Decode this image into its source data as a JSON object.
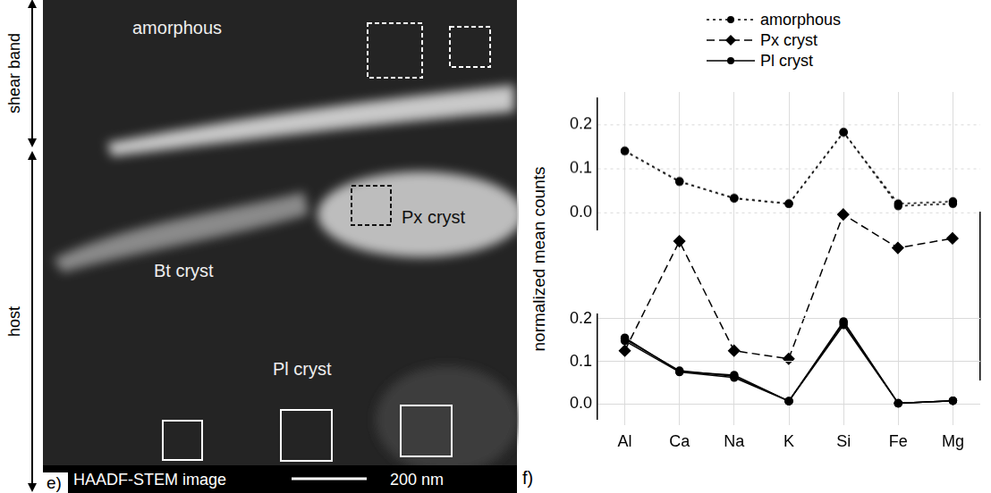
{
  "image": {
    "letter": "e)",
    "caption": "HAADF-STEM image",
    "scale_bar": "200 nm",
    "regions": [
      "shear band",
      "host"
    ],
    "labels": [
      "amorphous",
      "Px cryst",
      "Bt cryst",
      "Pl cryst"
    ]
  },
  "chart_panel": {
    "letter": "f)",
    "y_label": "normalized mean counts"
  },
  "chart_data": [
    {
      "type": "line",
      "categories": [
        "Al",
        "Ca",
        "Na",
        "K",
        "Si",
        "Fe",
        "Mg"
      ],
      "series": [
        {
          "name": "amorphous",
          "color": "#000000",
          "line_style": "dotted",
          "marker": "circle",
          "values": [
            0.14,
            0.07,
            0.033,
            0.02,
            0.183,
            0.015,
            0.02
          ]
        },
        {
          "name": "amorphous",
          "color": "#000000",
          "line_style": "dotted",
          "marker": "circle",
          "values": [
            0.14,
            0.071,
            0.032,
            0.02,
            0.182,
            0.02,
            0.025
          ]
        }
      ],
      "ylim": [
        -0.04,
        0.26
      ],
      "yticks": [
        {
          "value": 0,
          "label": "0.0"
        },
        0.1,
        0.2
      ],
      "grid": true,
      "tick_labels": "y",
      "legend": "top"
    },
    {
      "type": "line",
      "categories": [
        "Al",
        "Ca",
        "Na",
        "K",
        "Si",
        "Fe",
        "Mg"
      ],
      "series": [
        {
          "name": "Px cryst",
          "color": "#000000",
          "line_style": "dashed",
          "marker": "diamond",
          "axis": "y2",
          "values": [
            0.061,
            0.29,
            0.061,
            0.044,
            0.346,
            0.276,
            0.296
          ]
        }
      ],
      "y2lim": [
        0,
        0.35
      ],
      "tick_labels": false
    },
    {
      "type": "line",
      "categories": [
        "Al",
        "Ca",
        "Na",
        "K",
        "Si",
        "Fe",
        "Mg"
      ],
      "series": [
        {
          "name": "Pl cryst",
          "color": "#000000",
          "line_style": "solid",
          "marker": "circle",
          "values": [
            0.155,
            0.076,
            0.068,
            0.007,
            0.193,
            0.002,
            0.008
          ]
        },
        {
          "name": "Pl cryst",
          "color": "#000000",
          "line_style": "solid",
          "marker": "circle",
          "values": [
            0.148,
            0.075,
            0.062,
            0.007,
            0.185,
            0.002,
            0.008
          ]
        },
        {
          "name": "Pl cryst",
          "color": "#000000",
          "line_style": "solid",
          "marker": "circle",
          "values": [
            0.152,
            0.078,
            0.065,
            0.007,
            0.19,
            0.002,
            0.008
          ]
        }
      ],
      "ylim": [
        -0.035,
        0.21
      ],
      "yticks": [
        {
          "value": 0,
          "label": "0.0"
        },
        0.1,
        0.2
      ],
      "grid": true
    }
  ]
}
